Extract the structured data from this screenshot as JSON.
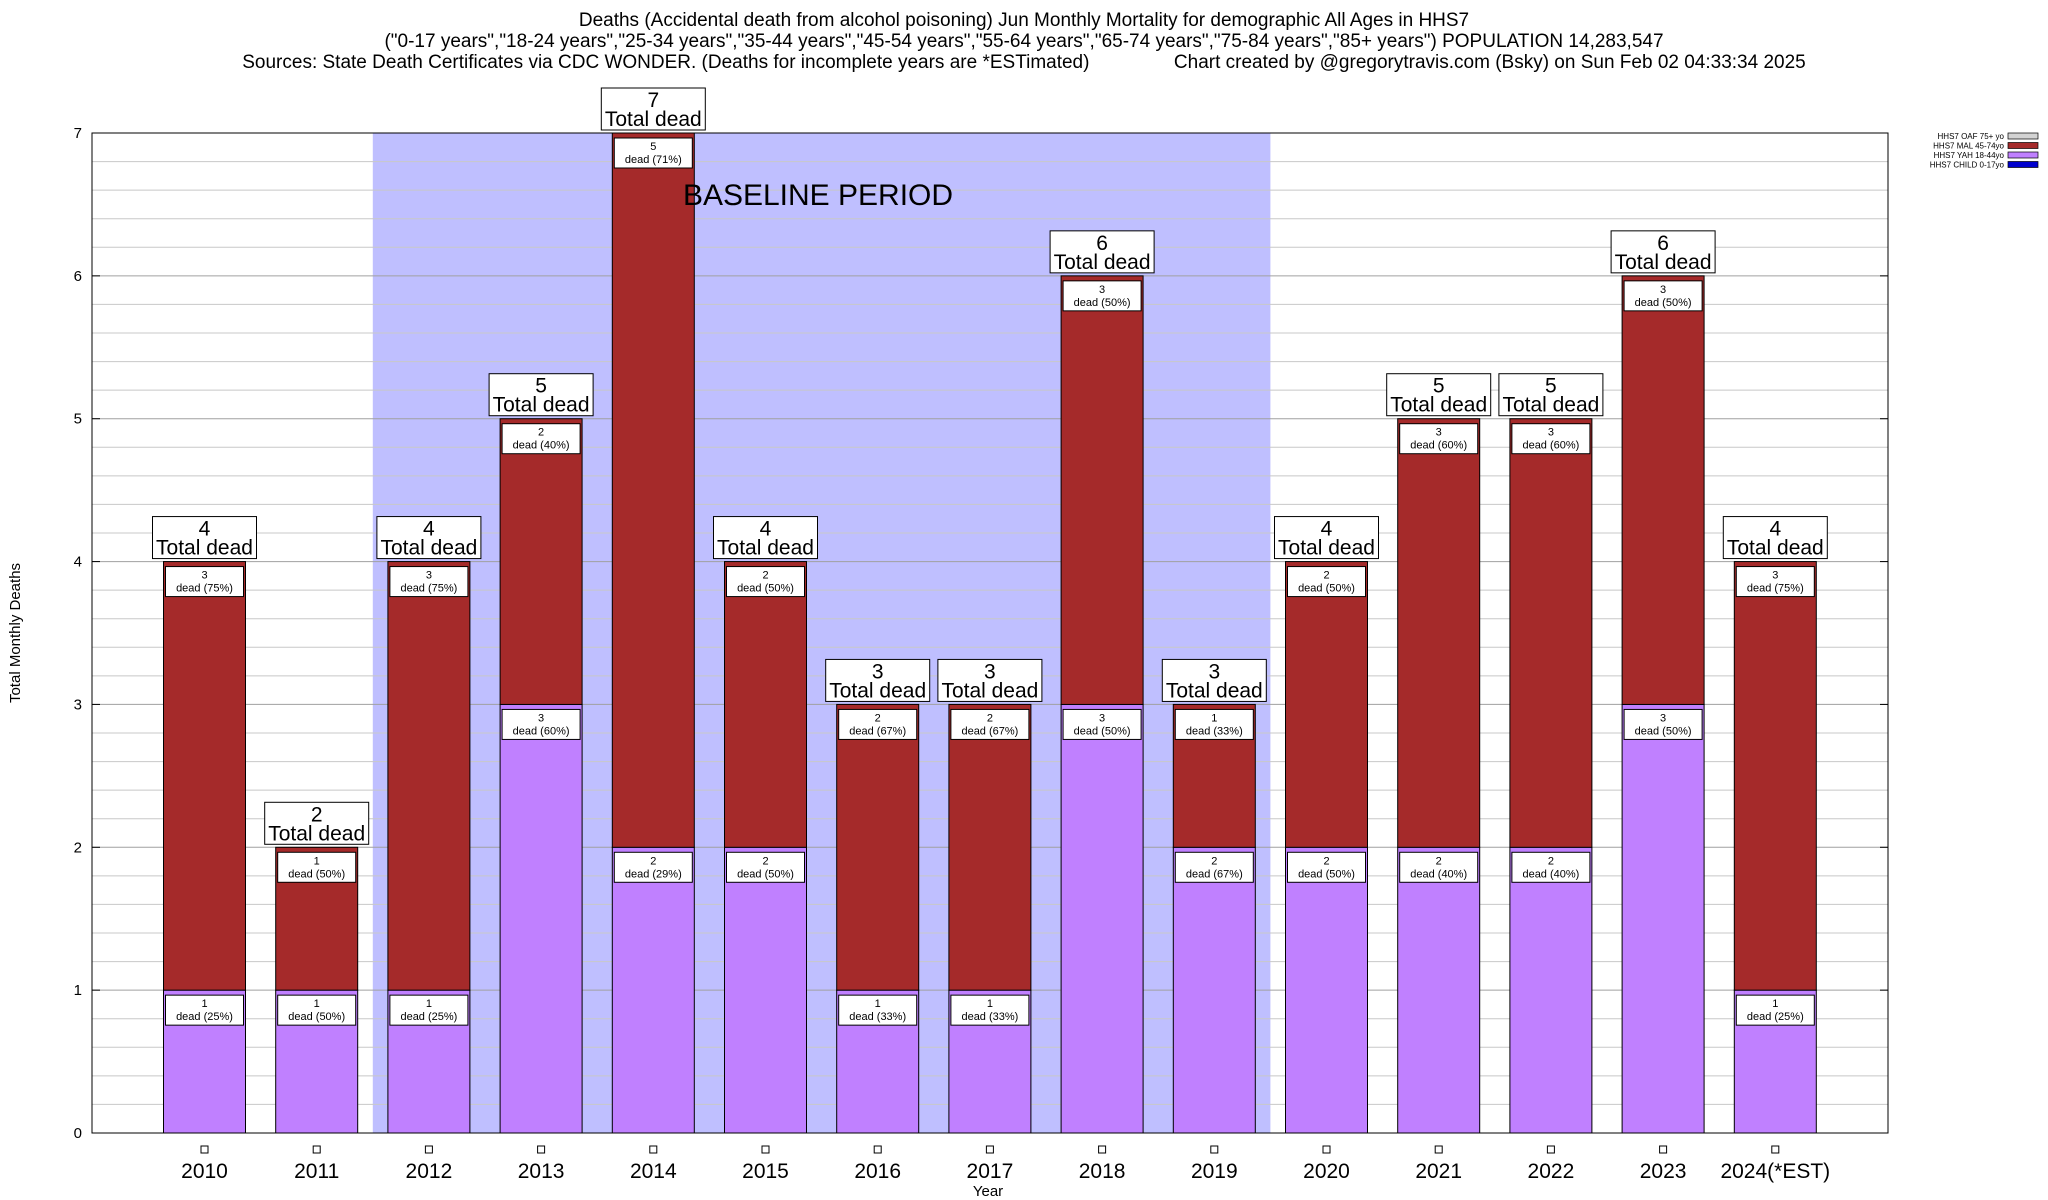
{
  "title": {
    "line1": "Deaths (Accidental death from alcohol poisoning) Jun Monthly Mortality for demographic All Ages in HHS7",
    "line2": "(\"0-17 years\",\"18-24 years\",\"25-34 years\",\"35-44 years\",\"45-54 years\",\"55-64 years\",\"65-74 years\",\"75-84 years\",\"85+ years\") POPULATION 14,283,547",
    "line3": "Sources: State Death Certificates via CDC WONDER. (Deaths for incomplete years are *ESTimated)                Chart created by @gregorytravis.com (Bsky) on Sun Feb 02 04:33:34 2025"
  },
  "chart_data": {
    "type": "bar",
    "stacked": true,
    "xlabel": "Year",
    "ylabel": "Total Monthly Deaths",
    "ylim": [
      0,
      7
    ],
    "yticks": [
      "0",
      "1",
      "2",
      "3",
      "4",
      "5",
      "6",
      "7"
    ],
    "grid": true,
    "legend_position": "top-right",
    "categories": [
      "2010",
      "2011",
      "2012",
      "2013",
      "2014",
      "2015",
      "2016",
      "2017",
      "2018",
      "2019",
      "2020",
      "2021",
      "2022",
      "2023",
      "2024(*EST)"
    ],
    "series": [
      {
        "name": "HHS7 OAF 75+ yo",
        "color": "#d3d3d3",
        "values": [
          0,
          0,
          0,
          0,
          0,
          0,
          0,
          0,
          0,
          0,
          0,
          0,
          0,
          0,
          0
        ],
        "labels": [
          "",
          "",
          "",
          "",
          "",
          "",
          "",
          "",
          "",
          "",
          "",
          "",
          "",
          "",
          ""
        ]
      },
      {
        "name": "HHS7 MAL 45-74yo",
        "color": "#a52a2a",
        "values": [
          3,
          1,
          3,
          2,
          5,
          2,
          2,
          2,
          3,
          1,
          2,
          3,
          3,
          3,
          3
        ],
        "labels": [
          "dead (75%)",
          "dead (50%)",
          "dead (75%)",
          "dead (40%)",
          "dead (71%)",
          "dead (50%)",
          "dead (67%)",
          "dead (67%)",
          "dead (50%)",
          "dead (33%)",
          "dead (50%)",
          "dead (60%)",
          "dead (60%)",
          "dead (50%)",
          "dead (75%)"
        ]
      },
      {
        "name": "HHS7 YAH 18-44yo",
        "color": "#c080ff",
        "values": [
          1,
          1,
          1,
          3,
          2,
          2,
          1,
          1,
          3,
          2,
          2,
          2,
          2,
          3,
          1
        ],
        "labels": [
          "dead (25%)",
          "dead (50%)",
          "dead (25%)",
          "dead (60%)",
          "dead (29%)",
          "dead (50%)",
          "dead (33%)",
          "dead (33%)",
          "dead (50%)",
          "dead (67%)",
          "dead (50%)",
          "dead (40%)",
          "dead (40%)",
          "dead (50%)",
          "dead (25%)"
        ]
      },
      {
        "name": "HHS7 CHILD 0-17yo",
        "color": "#0000cd",
        "values": [
          0,
          0,
          0,
          0,
          0,
          0,
          0,
          0,
          0,
          0,
          0,
          0,
          0,
          0,
          0
        ],
        "labels": [
          "",
          "",
          "",
          "",
          "",
          "",
          "",
          "",
          "",
          "",
          "",
          "",
          "",
          "",
          ""
        ]
      }
    ],
    "totals": [
      4,
      2,
      4,
      5,
      7,
      4,
      3,
      3,
      6,
      3,
      4,
      5,
      5,
      6,
      4
    ],
    "total_suffix": "Total dead",
    "annotation": {
      "text": "BASELINE PERIOD",
      "start_category": "2012",
      "end_category": "2019",
      "color": "#bfbfff"
    }
  }
}
